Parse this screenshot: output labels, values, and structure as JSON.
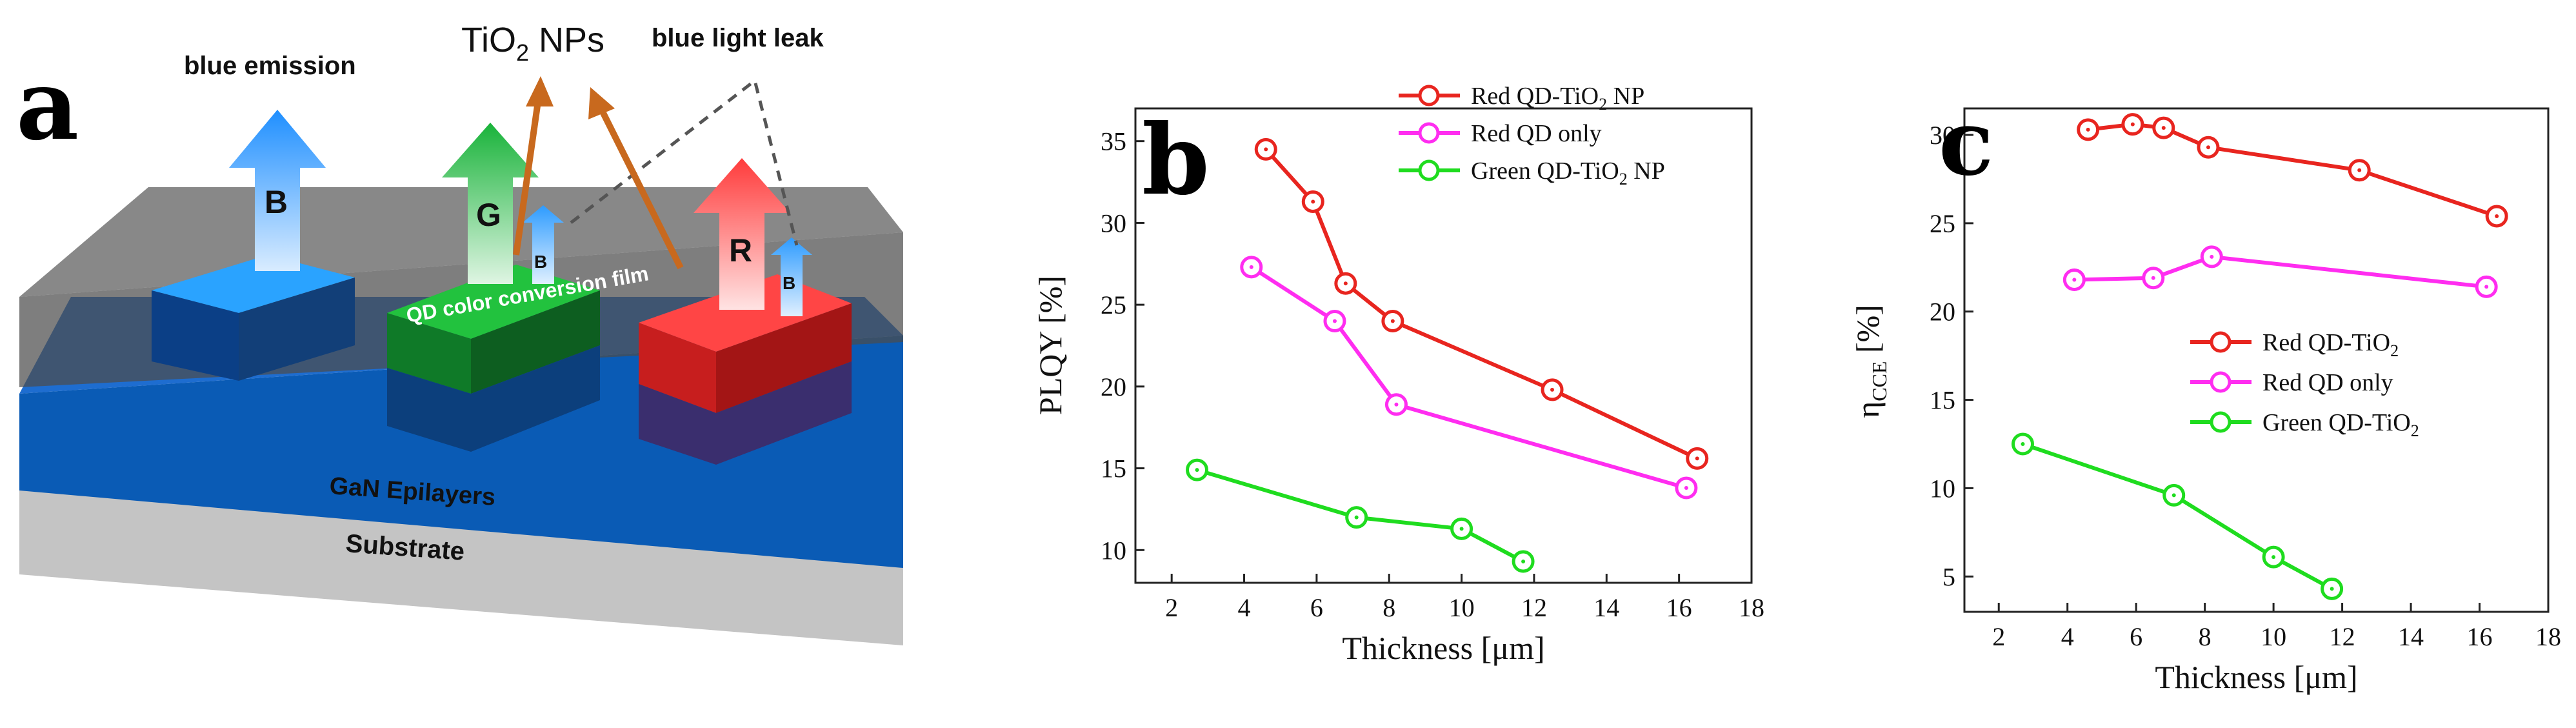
{
  "panels": {
    "a": "a",
    "b": "b",
    "c": "c"
  },
  "diagram": {
    "labels": {
      "blue_emission": "blue emission",
      "tio2_prefix": "TiO",
      "tio2_sub": "2",
      "tio2_suffix": " NPs",
      "blue_light_leak": "blue light leak",
      "b": "B",
      "g": "G",
      "r": "R",
      "small_b": "B",
      "qd_film": "QD color conversion film",
      "gan": "GaN Epilayers",
      "substrate": "Substrate"
    },
    "colors": {
      "blue": "#1f8fff",
      "green": "#19b33a",
      "red": "#ff3b3b",
      "arrow": "#c8691e",
      "gan": "#0a5bb5",
      "substrate": "#c8c8c8",
      "cover": "#555555"
    }
  },
  "chart_data": [
    {
      "panel": "b",
      "type": "line",
      "title": "",
      "xlabel": "Thickness [μm]",
      "ylabel": "PLQY [%]",
      "xlim": [
        1,
        18
      ],
      "ylim": [
        8,
        37
      ],
      "xticks": [
        2,
        4,
        6,
        8,
        10,
        12,
        14,
        16,
        18
      ],
      "xtick_labels": [
        "2",
        "4",
        "6",
        "8",
        "10",
        "12",
        "14",
        "16",
        "18"
      ],
      "yticks": [
        10,
        15,
        20,
        25,
        30,
        35
      ],
      "legend_position": "top-right",
      "series": [
        {
          "name": "Red QD-TiO2 NP",
          "legend": {
            "pre": "Red QD-TiO",
            "sub": "2",
            "post": " NP"
          },
          "color": "#e8251f",
          "x": [
            4.6,
            5.9,
            6.8,
            8.1,
            12.5,
            16.5
          ],
          "y": [
            34.5,
            31.3,
            26.3,
            24.0,
            19.8,
            15.6
          ]
        },
        {
          "name": "Red QD only",
          "legend": {
            "pre": "Red QD only",
            "sub": "",
            "post": ""
          },
          "color": "#ff2df0",
          "x": [
            4.2,
            6.5,
            8.2,
            16.2
          ],
          "y": [
            27.3,
            24.0,
            18.9,
            13.8
          ]
        },
        {
          "name": "Green QD-TiO2 NP",
          "legend": {
            "pre": "Green QD-TiO",
            "sub": "2",
            "post": " NP"
          },
          "color": "#1fdc1f",
          "x": [
            2.7,
            7.1,
            10.0,
            11.7
          ],
          "y": [
            14.9,
            12.0,
            11.3,
            9.3
          ]
        }
      ]
    },
    {
      "panel": "c",
      "type": "line",
      "title": "",
      "xlabel": "Thickness [μm]",
      "ylabel": {
        "main": "η",
        "sub": "CCE",
        "post": " [%]"
      },
      "xlim": [
        1,
        18
      ],
      "ylim": [
        3,
        31.5
      ],
      "xticks": [
        2,
        4,
        6,
        8,
        10,
        12,
        14,
        16,
        18
      ],
      "xtick_labels": [
        "2",
        "4",
        "6",
        "8",
        "10",
        "12",
        "14",
        "16",
        "18"
      ],
      "yticks": [
        5,
        10,
        15,
        20,
        25,
        30
      ],
      "legend_position": "center-right",
      "series": [
        {
          "name": "Red QD-TiO2",
          "legend": {
            "pre": "Red QD-TiO",
            "sub": "2",
            "post": ""
          },
          "color": "#e8251f",
          "x": [
            4.6,
            5.9,
            6.8,
            8.1,
            12.5,
            16.5
          ],
          "y": [
            30.3,
            30.6,
            30.4,
            29.3,
            28.0,
            25.4
          ]
        },
        {
          "name": "Red QD only",
          "legend": {
            "pre": "Red QD only",
            "sub": "",
            "post": ""
          },
          "color": "#ff2df0",
          "x": [
            4.2,
            6.5,
            8.2,
            16.2
          ],
          "y": [
            21.8,
            21.9,
            23.1,
            21.4
          ]
        },
        {
          "name": "Green QD-TiO2",
          "legend": {
            "pre": "Green QD-TiO",
            "sub": "2",
            "post": ""
          },
          "color": "#1fdc1f",
          "x": [
            2.7,
            7.1,
            10.0,
            11.7
          ],
          "y": [
            12.5,
            9.6,
            6.1,
            4.3
          ]
        }
      ]
    }
  ]
}
